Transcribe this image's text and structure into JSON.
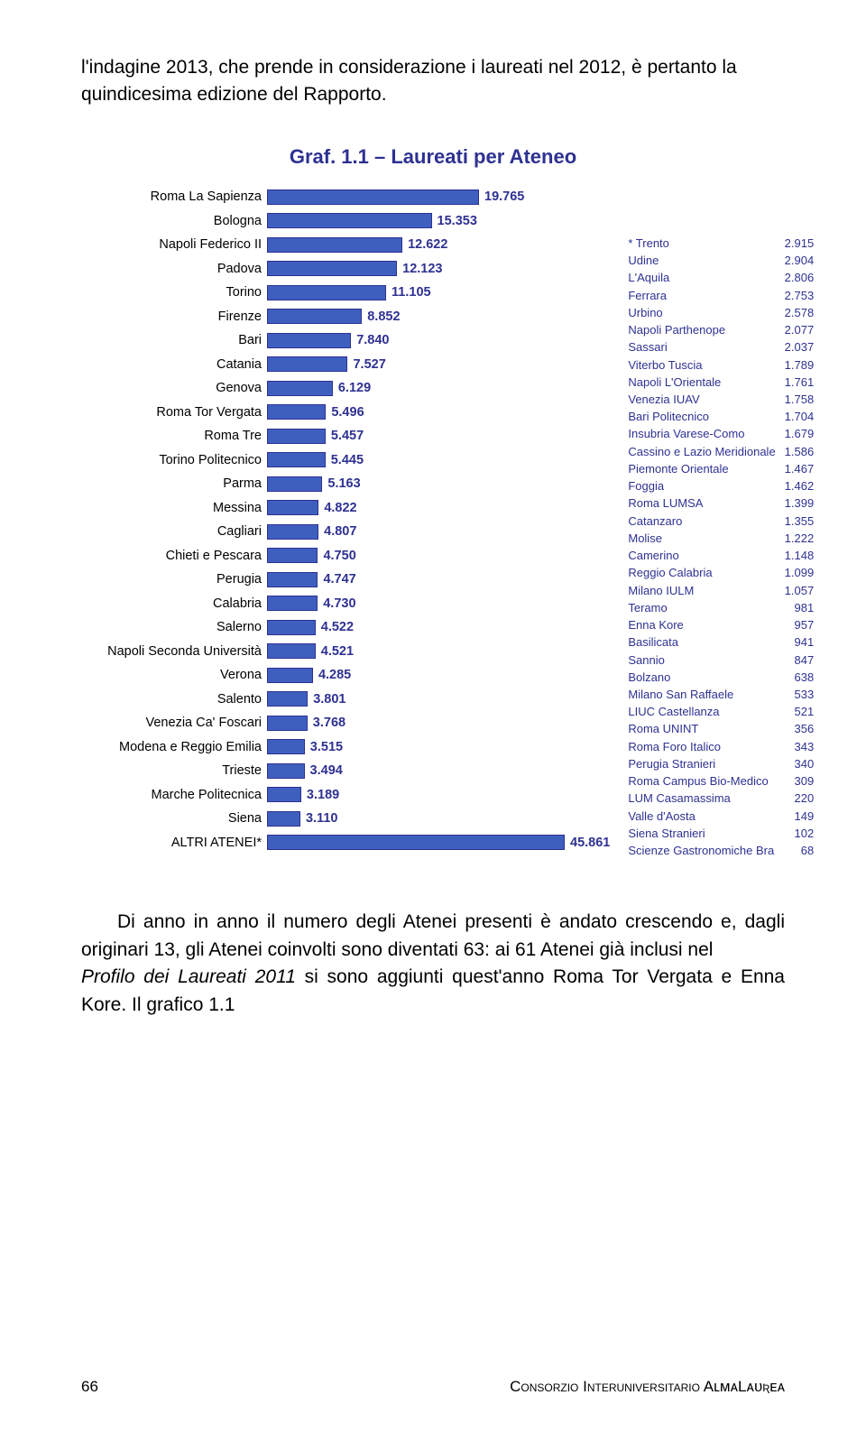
{
  "intro_text": "l'indagine 2013, che prende in considerazione i laureati nel 2012, è pertanto la quindicesima edizione del Rapporto.",
  "chart": {
    "title": "Graf. 1.1 – Laureati per Ateneo",
    "max_value": 19.765,
    "bar_track_width": 235,
    "bar_fill_color": "#3f5fbf",
    "value_color": "#2e3192",
    "bars": [
      {
        "label": "Roma La Sapienza",
        "value": "19.765",
        "num": 19.765
      },
      {
        "label": "Bologna",
        "value": "15.353",
        "num": 15.353
      },
      {
        "label": "Napoli Federico II",
        "value": "12.622",
        "num": 12.622
      },
      {
        "label": "Padova",
        "value": "12.123",
        "num": 12.123
      },
      {
        "label": "Torino",
        "value": "11.105",
        "num": 11.105
      },
      {
        "label": "Firenze",
        "value": "8.852",
        "num": 8.852
      },
      {
        "label": "Bari",
        "value": "7.840",
        "num": 7.84
      },
      {
        "label": "Catania",
        "value": "7.527",
        "num": 7.527
      },
      {
        "label": "Genova",
        "value": "6.129",
        "num": 6.129
      },
      {
        "label": "Roma Tor Vergata",
        "value": "5.496",
        "num": 5.496
      },
      {
        "label": "Roma Tre",
        "value": "5.457",
        "num": 5.457
      },
      {
        "label": "Torino Politecnico",
        "value": "5.445",
        "num": 5.445
      },
      {
        "label": "Parma",
        "value": "5.163",
        "num": 5.163
      },
      {
        "label": "Messina",
        "value": "4.822",
        "num": 4.822
      },
      {
        "label": "Cagliari",
        "value": "4.807",
        "num": 4.807
      },
      {
        "label": "Chieti e Pescara",
        "value": "4.750",
        "num": 4.75
      },
      {
        "label": "Perugia",
        "value": "4.747",
        "num": 4.747
      },
      {
        "label": "Calabria",
        "value": "4.730",
        "num": 4.73
      },
      {
        "label": "Salerno",
        "value": "4.522",
        "num": 4.522
      },
      {
        "label": "Napoli Seconda Università",
        "value": "4.521",
        "num": 4.521
      },
      {
        "label": "Verona",
        "value": "4.285",
        "num": 4.285
      },
      {
        "label": "Salento",
        "value": "3.801",
        "num": 3.801
      },
      {
        "label": "Venezia Ca' Foscari",
        "value": "3.768",
        "num": 3.768
      },
      {
        "label": "Modena e Reggio Emilia",
        "value": "3.515",
        "num": 3.515
      },
      {
        "label": "Trieste",
        "value": "3.494",
        "num": 3.494
      },
      {
        "label": "Marche Politecnica",
        "value": "3.189",
        "num": 3.189
      },
      {
        "label": "Siena",
        "value": "3.110",
        "num": 3.11
      }
    ],
    "altri_label": "ALTRI ATENEI*",
    "altri_value": "45.861",
    "right_table": [
      {
        "label": "* Trento",
        "value": "2.915"
      },
      {
        "label": "Udine",
        "value": "2.904"
      },
      {
        "label": "L'Aquila",
        "value": "2.806"
      },
      {
        "label": "Ferrara",
        "value": "2.753"
      },
      {
        "label": "Urbino",
        "value": "2.578"
      },
      {
        "label": "Napoli Parthenope",
        "value": "2.077"
      },
      {
        "label": "Sassari",
        "value": "2.037"
      },
      {
        "label": "Viterbo Tuscia",
        "value": "1.789"
      },
      {
        "label": "Napoli L'Orientale",
        "value": "1.761"
      },
      {
        "label": "Venezia IUAV",
        "value": "1.758"
      },
      {
        "label": "Bari Politecnico",
        "value": "1.704"
      },
      {
        "label": "Insubria Varese-Como",
        "value": "1.679"
      },
      {
        "label": "Cassino e Lazio Meridionale",
        "value": "1.586"
      },
      {
        "label": "Piemonte Orientale",
        "value": "1.467"
      },
      {
        "label": "Foggia",
        "value": "1.462"
      },
      {
        "label": "Roma LUMSA",
        "value": "1.399"
      },
      {
        "label": "Catanzaro",
        "value": "1.355"
      },
      {
        "label": "Molise",
        "value": "1.222"
      },
      {
        "label": "Camerino",
        "value": "1.148"
      },
      {
        "label": "Reggio Calabria",
        "value": "1.099"
      },
      {
        "label": "Milano IULM",
        "value": "1.057"
      },
      {
        "label": "Teramo",
        "value": "981"
      },
      {
        "label": "Enna Kore",
        "value": "957"
      },
      {
        "label": "Basilicata",
        "value": "941"
      },
      {
        "label": "Sannio",
        "value": "847"
      },
      {
        "label": "Bolzano",
        "value": "638"
      },
      {
        "label": "Milano San Raffaele",
        "value": "533"
      },
      {
        "label": "LIUC Castellanza",
        "value": "521"
      },
      {
        "label": "Roma UNINT",
        "value": "356"
      },
      {
        "label": "Roma Foro Italico",
        "value": "343"
      },
      {
        "label": "Perugia Stranieri",
        "value": "340"
      },
      {
        "label": "Roma Campus Bio-Medico",
        "value": "309"
      },
      {
        "label": "LUM Casamassima",
        "value": "220"
      },
      {
        "label": "Valle d'Aosta",
        "value": "149"
      },
      {
        "label": "Siena Stranieri",
        "value": "102"
      },
      {
        "label": "Scienze Gastronomiche Bra",
        "value": "68"
      }
    ]
  },
  "outro_pre": "Di anno in anno il numero degli Atenei presenti è andato crescendo e, dagli originari 13, gli Atenei coinvolti sono diventati 63: ai 61 Atenei già inclusi nel ",
  "outro_italic": "Profilo dei Laureati 2011",
  "outro_post": " si sono aggiunti quest'anno Roma Tor Vergata e Enna Kore. Il grafico 1.1",
  "footer": {
    "page_number": "66",
    "right_text": "Consorzio Interuniversitario AʟᴍᴀLᴀᴜʀᴇᴀ"
  }
}
